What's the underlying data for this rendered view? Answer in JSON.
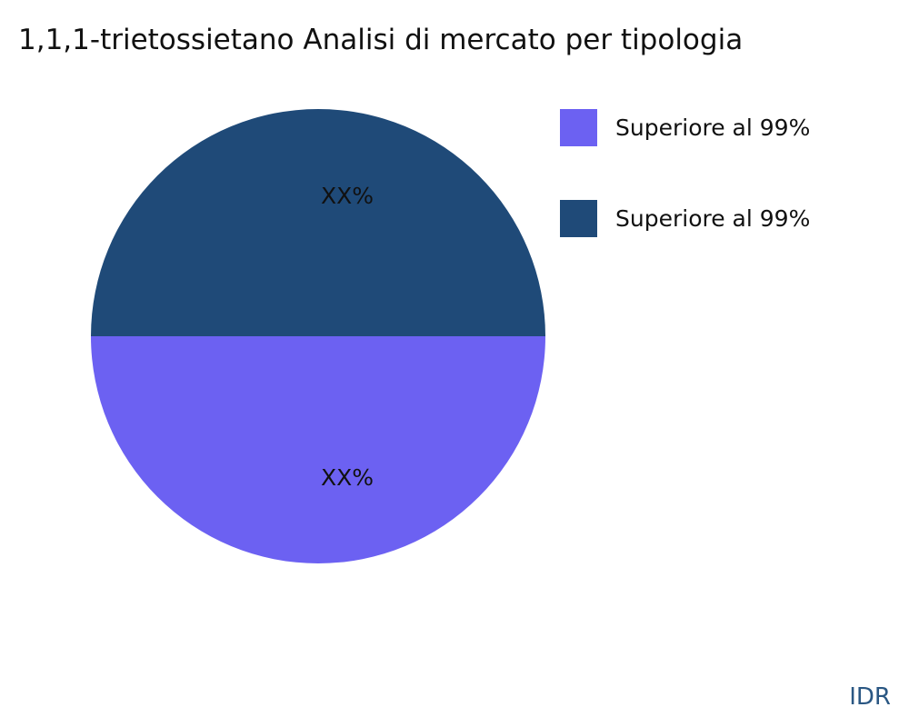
{
  "chart_data": {
    "type": "pie",
    "title": "1,1,1-trietossietano Analisi di mercato per tipologia",
    "slices": [
      {
        "name": "Superiore al 99%",
        "value": 50,
        "label": "XX%",
        "color": "#6c61f2"
      },
      {
        "name": "Superiore al 99%",
        "value": 50,
        "label": "XX%",
        "color": "#1f4a78"
      }
    ],
    "legend_position": "right"
  },
  "watermark": "IDR"
}
